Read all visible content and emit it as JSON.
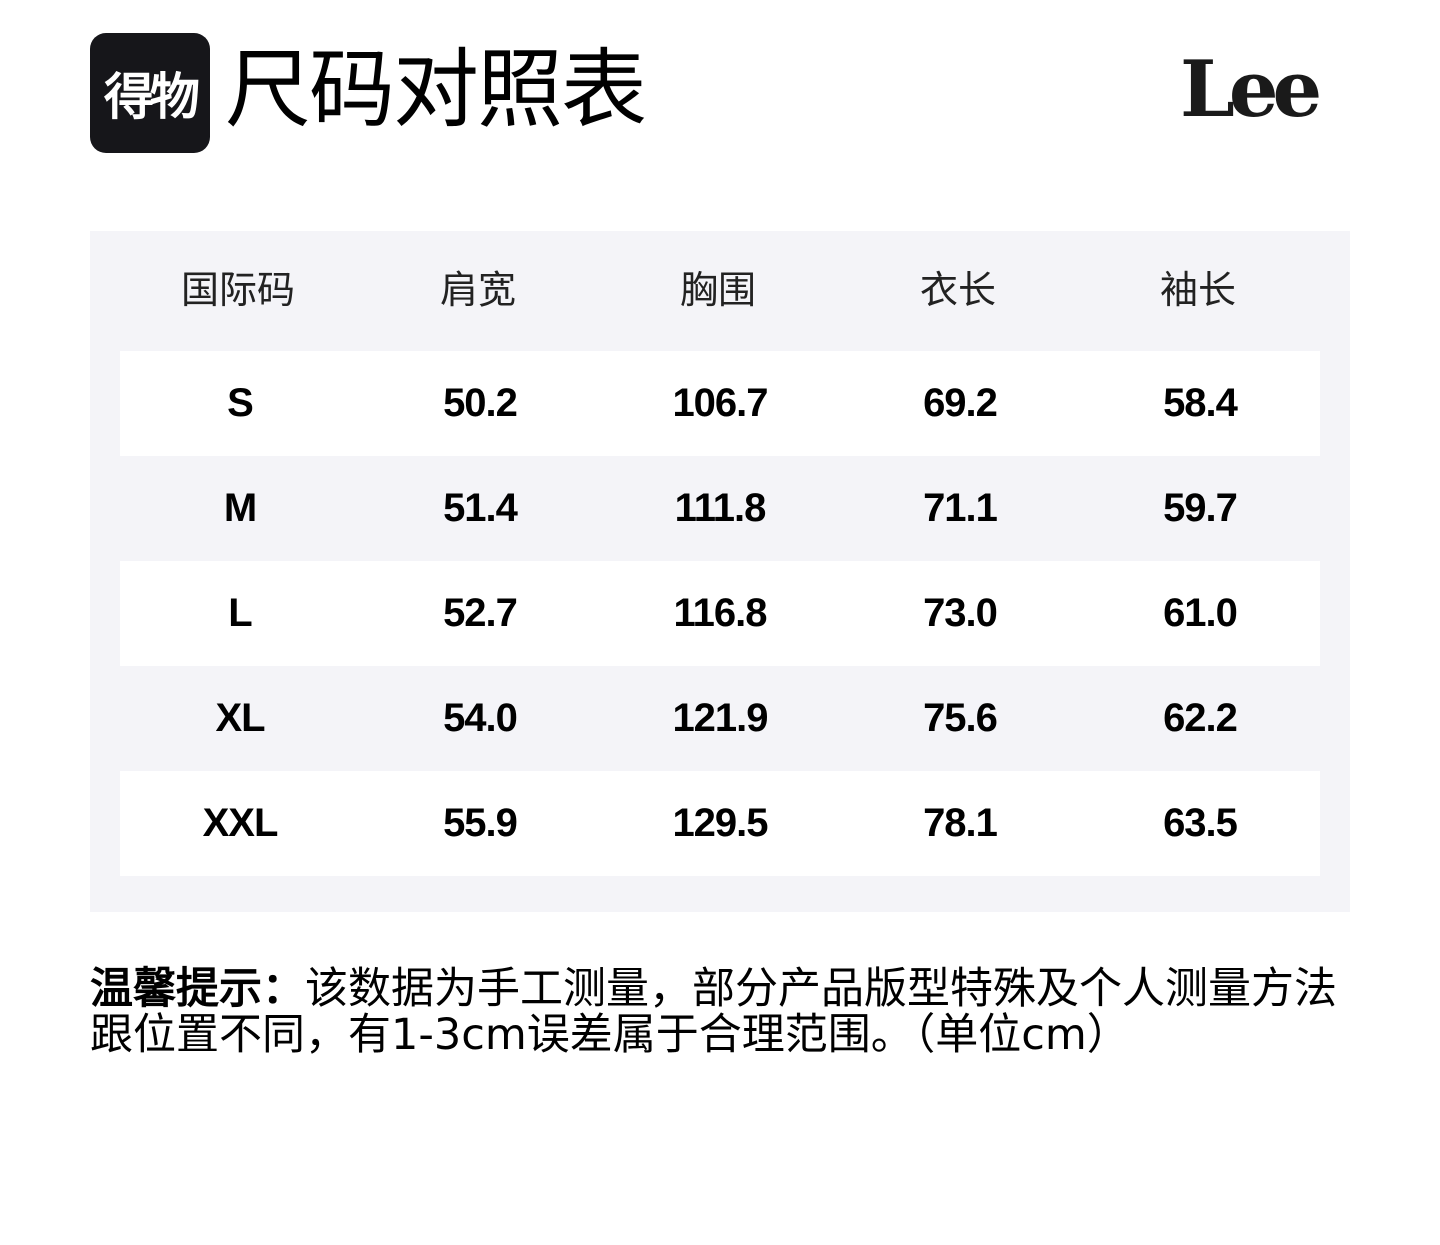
{
  "header": {
    "app_logo_text": "得物",
    "title": "尺码对照表",
    "brand_logo_text": "Lee"
  },
  "table": {
    "columns": [
      "国际码",
      "肩宽",
      "胸围",
      "衣长",
      "袖长"
    ],
    "rows": [
      [
        "S",
        "50.2",
        "106.7",
        "69.2",
        "58.4"
      ],
      [
        "M",
        "51.4",
        "111.8",
        "71.1",
        "59.7"
      ],
      [
        "L",
        "52.7",
        "116.8",
        "73.0",
        "61.0"
      ],
      [
        "XL",
        "54.0",
        "121.9",
        "75.6",
        "62.2"
      ],
      [
        "XXL",
        "55.9",
        "129.5",
        "78.1",
        "63.5"
      ]
    ]
  },
  "note": {
    "label": "温馨提示：",
    "text": "该数据为手工测量，部分产品版型特殊及个人测量方法跟位置不同，有1-3cm误差属于合理范围。（单位cm）"
  },
  "colors": {
    "table_bg": "#f4f4f8",
    "logo_bg": "#16161a",
    "row_alt": "#ffffff"
  }
}
